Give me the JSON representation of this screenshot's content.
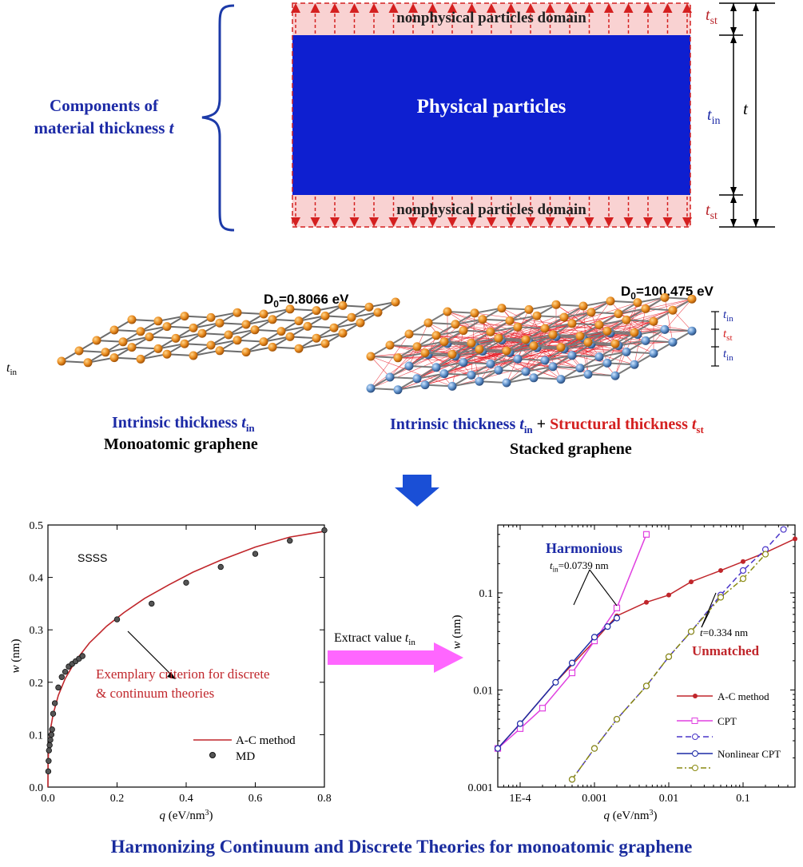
{
  "top": {
    "components_line1": "Components of",
    "components_line2": "material thickness",
    "components_var": "t",
    "domain_top": "nonphysical particles domain",
    "domain_bottom": "nonphysical particles domain",
    "physical": "Physical particles",
    "t_st": "t",
    "t_st_sub": "st",
    "t_in": "t",
    "t_in_sub": "in",
    "t": "t"
  },
  "middle": {
    "left": {
      "d0_prefix": "D",
      "d0_sub": "0",
      "d0_value": "=0.8066 eV",
      "tin_label": "t",
      "tin_sub": "in",
      "caption1_text": "Intrinsic thickness ",
      "caption1_var": "t",
      "caption1_sub": "in",
      "caption2": "Monoatomic graphene"
    },
    "right": {
      "d0_prefix": "D",
      "d0_sub": "0",
      "d0_value": "=100.475 eV",
      "labels": [
        {
          "t": "t",
          "sub": "in"
        },
        {
          "t": "t",
          "sub": "st"
        },
        {
          "t": "t",
          "sub": "in"
        }
      ],
      "caption1_a": "Intrinsic thickness ",
      "caption1_a_var": "t",
      "caption1_a_sub": "in",
      "caption1_plus": " + ",
      "caption1_b": "Structural thickness ",
      "caption1_b_var": "t",
      "caption1_b_sub": "st",
      "caption2": "Stacked graphene"
    }
  },
  "arrow_label": "Extract value ",
  "arrow_label_var": "t",
  "arrow_label_sub": "in",
  "footer": "Harmonizing Continuum and Discrete Theories for monoatomic graphene",
  "colors": {
    "blue": "#0e1fd0",
    "pink": "#f9d2d2",
    "red": "#d42020",
    "navy": "#1c2aa6",
    "magenta": "#ff55ff"
  },
  "chart_data": [
    {
      "type": "line",
      "annotation": "SSSS",
      "criterion_line1": "Exemplary criterion for discrete",
      "criterion_line2": "& continuum theories",
      "xlabel": "q (eV/nm",
      "xlabel_sup": "3",
      "xlabel_end": ")",
      "ylabel": "w (nm)",
      "xlim": [
        0,
        0.8
      ],
      "ylim": [
        0,
        0.5
      ],
      "xticks": [
        "0.0",
        "0.2",
        "0.4",
        "0.6",
        "0.8"
      ],
      "yticks": [
        "0.0",
        "0.1",
        "0.2",
        "0.3",
        "0.4",
        "0.5"
      ],
      "grid": false,
      "legend_position": "bottom-right",
      "series": [
        {
          "name": "A-C method",
          "x": [
            0,
            0.0005,
            0.001,
            0.002,
            0.004,
            0.008,
            0.015,
            0.03,
            0.05,
            0.08,
            0.12,
            0.17,
            0.22,
            0.28,
            0.35,
            0.42,
            0.5,
            0.6,
            0.7,
            0.8
          ],
          "y": [
            0,
            0.045,
            0.056,
            0.072,
            0.09,
            0.113,
            0.139,
            0.175,
            0.207,
            0.241,
            0.275,
            0.307,
            0.333,
            0.36,
            0.386,
            0.41,
            0.433,
            0.458,
            0.477,
            0.488
          ]
        },
        {
          "name": "MD",
          "x": [
            0.001,
            0.002,
            0.003,
            0.005,
            0.007,
            0.01,
            0.012,
            0.015,
            0.02,
            0.03,
            0.04,
            0.05,
            0.06,
            0.07,
            0.08,
            0.09,
            0.1,
            0.2,
            0.3,
            0.4,
            0.5,
            0.6,
            0.7,
            0.8
          ],
          "y": [
            0.03,
            0.05,
            0.07,
            0.08,
            0.09,
            0.1,
            0.11,
            0.14,
            0.16,
            0.19,
            0.21,
            0.22,
            0.23,
            0.235,
            0.24,
            0.245,
            0.25,
            0.32,
            0.35,
            0.39,
            0.42,
            0.445,
            0.47,
            0.49
          ]
        }
      ]
    },
    {
      "type": "line",
      "xlabel": "q (eV/nm",
      "xlabel_sup": "3",
      "xlabel_end": ")",
      "ylabel": "w (nm)",
      "xscale": "log",
      "yscale": "log",
      "xlim": [
        5e-05,
        0.5
      ],
      "ylim": [
        0.001,
        0.5
      ],
      "xticks": [
        "1E-4",
        "0.001",
        "0.01",
        "0.1"
      ],
      "yticks": [
        "0.001",
        "0.01",
        "0.1"
      ],
      "annotation_harmonious": "Harmonious",
      "annotation_tin": "t",
      "annotation_tin_sub": "in",
      "annotation_tin_value": "=0.0739 nm",
      "annotation_t": "t",
      "annotation_t_value": "=0.334 nm",
      "annotation_unmatched": "Unmatched",
      "legend_position": "bottom-right",
      "series": [
        {
          "name": "A-C method",
          "x": [
            5e-05,
            0.0001,
            0.0003,
            0.001,
            0.002,
            0.005,
            0.01,
            0.02,
            0.05,
            0.1,
            0.2,
            0.5
          ],
          "y": [
            0.0025,
            0.0045,
            0.012,
            0.032,
            0.058,
            0.08,
            0.095,
            0.13,
            0.17,
            0.21,
            0.26,
            0.36
          ]
        },
        {
          "name": "CPT",
          "x": [
            5e-05,
            0.0001,
            0.0002,
            0.0005,
            0.001,
            0.002,
            0.005
          ],
          "y": [
            0.0025,
            0.004,
            0.0065,
            0.015,
            0.032,
            0.07,
            0.4
          ]
        },
        {
          "name": "",
          "x": [
            0.0005,
            0.001,
            0.002,
            0.005,
            0.01,
            0.02,
            0.05,
            0.1,
            0.2,
            0.35
          ],
          "y": [
            0.0012,
            0.0025,
            0.005,
            0.011,
            0.022,
            0.04,
            0.095,
            0.17,
            0.28,
            0.45
          ]
        },
        {
          "name": "Nonlinear CPT",
          "x": [
            5e-05,
            0.0001,
            0.0003,
            0.0005,
            0.001,
            0.0015,
            0.002
          ],
          "y": [
            0.0025,
            0.0045,
            0.012,
            0.019,
            0.035,
            0.045,
            0.055
          ]
        },
        {
          "name": "",
          "x": [
            0.0005,
            0.001,
            0.002,
            0.005,
            0.01,
            0.02,
            0.05,
            0.1,
            0.2
          ],
          "y": [
            0.0012,
            0.0025,
            0.005,
            0.011,
            0.022,
            0.04,
            0.09,
            0.14,
            0.25
          ]
        }
      ]
    }
  ]
}
